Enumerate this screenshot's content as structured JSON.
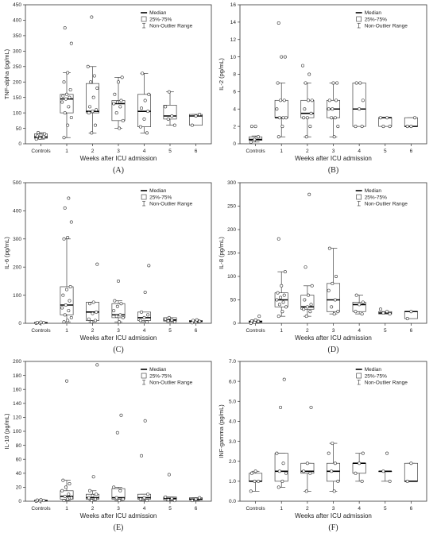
{
  "chart_data": [
    {
      "type": "box",
      "panel_label": "(A)",
      "ylabel": "TNF-alpha (pg/mL)",
      "xlabel": "Weeks after ICU admission",
      "ylim": [
        0,
        450
      ],
      "yticks": [
        0,
        50,
        100,
        150,
        200,
        250,
        300,
        350,
        400,
        450
      ],
      "categories": [
        "Controls",
        "1",
        "2",
        "3",
        "4",
        "5",
        "6"
      ],
      "legend": [
        "Median",
        "25%-75%",
        "Non-Outlier Range"
      ],
      "boxes": [
        {
          "min": 15,
          "q1": 18,
          "median": 22,
          "q3": 32,
          "max": 36
        },
        {
          "min": 20,
          "q1": 100,
          "median": 145,
          "q3": 160,
          "max": 230
        },
        {
          "min": 35,
          "q1": 100,
          "median": 105,
          "q3": 195,
          "max": 250
        },
        {
          "min": 50,
          "q1": 75,
          "median": 130,
          "q3": 140,
          "max": 215
        },
        {
          "min": 35,
          "q1": 55,
          "median": 105,
          "q3": 160,
          "max": 228
        },
        {
          "min": 60,
          "q1": 80,
          "median": 90,
          "q3": 125,
          "max": 168
        },
        {
          "min": 60,
          "q1": 60,
          "median": 90,
          "q3": 95,
          "max": 95
        }
      ],
      "points": [
        [
          15,
          18,
          22,
          25,
          28,
          32,
          36
        ],
        [
          20,
          60,
          85,
          100,
          120,
          135,
          145,
          150,
          155,
          160,
          175,
          200,
          230,
          325,
          375
        ],
        [
          35,
          60,
          100,
          105,
          110,
          120,
          150,
          180,
          200,
          220,
          250,
          410
        ],
        [
          50,
          75,
          100,
          120,
          130,
          135,
          140,
          160,
          200,
          215
        ],
        [
          35,
          55,
          80,
          105,
          115,
          140,
          160,
          228
        ],
        [
          60,
          80,
          90,
          120,
          168
        ],
        [
          60,
          90,
          95
        ]
      ]
    },
    {
      "type": "box",
      "panel_label": "(B)",
      "ylabel": "IL-2 (pg/mL)",
      "xlabel": "Weeks after ICU admission",
      "ylim": [
        0,
        16
      ],
      "yticks": [
        0,
        2,
        4,
        6,
        8,
        10,
        12,
        14,
        16
      ],
      "categories": [
        "Controls",
        "1",
        "2",
        "3",
        "4",
        "5",
        "6"
      ],
      "legend": [
        "Median",
        "25%-75%",
        "Non-Outlier Range"
      ],
      "boxes": [
        {
          "min": 0.2,
          "q1": 0.4,
          "median": 0.5,
          "q3": 0.8,
          "max": 0.9
        },
        {
          "min": 0.8,
          "q1": 3,
          "median": 3,
          "q3": 5,
          "max": 7
        },
        {
          "min": 0.8,
          "q1": 3,
          "median": 3.5,
          "q3": 5,
          "max": 7
        },
        {
          "min": 0.8,
          "q1": 3,
          "median": 4,
          "q3": 5,
          "max": 7
        },
        {
          "min": 2,
          "q1": 2,
          "median": 4,
          "q3": 7,
          "max": 7
        },
        {
          "min": 2,
          "q1": 2,
          "median": 3,
          "q3": 3,
          "max": 3
        },
        {
          "min": 2,
          "q1": 2,
          "median": 2,
          "q3": 3,
          "max": 3
        }
      ],
      "points": [
        [
          0.2,
          0.5,
          0.8,
          2,
          2
        ],
        [
          0.8,
          2,
          3,
          3,
          3,
          4,
          5,
          5,
          7,
          10,
          10,
          13.9
        ],
        [
          0.8,
          2,
          3,
          3,
          3.5,
          4,
          5,
          5,
          7,
          8,
          9
        ],
        [
          0.8,
          2,
          3,
          3,
          4,
          4,
          5,
          5,
          7,
          7
        ],
        [
          2,
          2,
          4,
          5,
          7,
          7
        ],
        [
          2,
          2,
          3,
          3
        ],
        [
          2,
          2,
          3
        ]
      ]
    },
    {
      "type": "box",
      "panel_label": "(C)",
      "ylabel": "IL-6 (pg/mL)",
      "xlabel": "Weeks after ICU admission",
      "ylim": [
        0,
        500
      ],
      "yticks": [
        0,
        100,
        200,
        300,
        400,
        500
      ],
      "categories": [
        "Controls",
        "1",
        "2",
        "3",
        "4",
        "5",
        "6"
      ],
      "legend": [
        "Median",
        "25%-75%",
        "Non-Outlier Range"
      ],
      "boxes": [
        {
          "min": 0,
          "q1": 1,
          "median": 2,
          "q3": 3,
          "max": 4
        },
        {
          "min": 5,
          "q1": 30,
          "median": 65,
          "q3": 130,
          "max": 300
        },
        {
          "min": 5,
          "q1": 10,
          "median": 40,
          "q3": 75,
          "max": 75
        },
        {
          "min": 5,
          "q1": 20,
          "median": 30,
          "q3": 70,
          "max": 80
        },
        {
          "min": 5,
          "q1": 10,
          "median": 20,
          "q3": 40,
          "max": 40
        },
        {
          "min": 5,
          "q1": 8,
          "median": 12,
          "q3": 20,
          "max": 20
        },
        {
          "min": 2,
          "q1": 5,
          "median": 7,
          "q3": 10,
          "max": 12
        }
      ],
      "points": [
        [
          0,
          1,
          2,
          3,
          4
        ],
        [
          5,
          10,
          20,
          30,
          45,
          55,
          65,
          80,
          100,
          120,
          130,
          300,
          305,
          360,
          410,
          445
        ],
        [
          5,
          10,
          15,
          35,
          40,
          70,
          75,
          210
        ],
        [
          5,
          20,
          25,
          30,
          45,
          60,
          70,
          80,
          150
        ],
        [
          5,
          10,
          20,
          30,
          40,
          110,
          205
        ],
        [
          5,
          8,
          12,
          15,
          20
        ],
        [
          2,
          5,
          7,
          10,
          12
        ]
      ]
    },
    {
      "type": "box",
      "panel_label": "(D)",
      "ylabel": "IL-8 (pg/mL)",
      "xlabel": "Weeks after ICU admission",
      "ylim": [
        0,
        300
      ],
      "yticks": [
        0,
        50,
        100,
        150,
        200,
        250,
        300
      ],
      "categories": [
        "Controls",
        "1",
        "2",
        "3",
        "4",
        "5",
        "6"
      ],
      "legend": [
        "Median",
        "25%-75%",
        "Non-Outlier Range"
      ],
      "boxes": [
        {
          "min": 0,
          "q1": 2,
          "median": 4,
          "q3": 5,
          "max": 7
        },
        {
          "min": 15,
          "q1": 35,
          "median": 50,
          "q3": 65,
          "max": 110
        },
        {
          "min": 15,
          "q1": 30,
          "median": 35,
          "q3": 60,
          "max": 80
        },
        {
          "min": 20,
          "q1": 25,
          "median": 50,
          "q3": 85,
          "max": 160
        },
        {
          "min": 20,
          "q1": 25,
          "median": 40,
          "q3": 45,
          "max": 60
        },
        {
          "min": 20,
          "q1": 20,
          "median": 22,
          "q3": 25,
          "max": 25
        },
        {
          "min": 10,
          "q1": 10,
          "median": 25,
          "q3": 25,
          "max": 25
        }
      ],
      "points": [
        [
          0,
          2,
          4,
          5,
          7,
          15
        ],
        [
          15,
          25,
          35,
          40,
          45,
          50,
          55,
          60,
          65,
          80,
          110,
          180
        ],
        [
          15,
          25,
          30,
          35,
          40,
          50,
          60,
          80,
          120,
          275
        ],
        [
          20,
          25,
          35,
          50,
          70,
          85,
          100,
          160
        ],
        [
          20,
          25,
          40,
          45,
          60
        ],
        [
          20,
          22,
          25,
          30
        ],
        [
          10,
          25
        ]
      ]
    },
    {
      "type": "box",
      "panel_label": "(E)",
      "ylabel": "IL-10 (pg/mL)",
      "xlabel": "Weeks after ICU admission",
      "ylim": [
        0,
        200
      ],
      "yticks": [
        0,
        20,
        40,
        60,
        80,
        100,
        120,
        140,
        160,
        180,
        200
      ],
      "categories": [
        "Controls",
        "1",
        "2",
        "3",
        "4",
        "5",
        "6"
      ],
      "legend": [
        "Median",
        "25%-75%",
        "Non-Outlier Range"
      ],
      "boxes": [
        {
          "min": 0,
          "q1": 0.5,
          "median": 1,
          "q3": 1.5,
          "max": 2
        },
        {
          "min": 1,
          "q1": 3,
          "median": 7,
          "q3": 15,
          "max": 30
        },
        {
          "min": 1,
          "q1": 3,
          "median": 5,
          "q3": 10,
          "max": 15
        },
        {
          "min": 1,
          "q1": 3,
          "median": 5,
          "q3": 18,
          "max": 20
        },
        {
          "min": 1,
          "q1": 3,
          "median": 5,
          "q3": 10,
          "max": 10
        },
        {
          "min": 1,
          "q1": 2,
          "median": 4,
          "q3": 6,
          "max": 6
        },
        {
          "min": 1,
          "q1": 2,
          "median": 3,
          "q3": 5,
          "max": 5
        }
      ],
      "points": [
        [
          0,
          0.5,
          1,
          1.5,
          2
        ],
        [
          1,
          3,
          5,
          7,
          10,
          15,
          20,
          25,
          30,
          172
        ],
        [
          1,
          3,
          5,
          8,
          10,
          15,
          35,
          195
        ],
        [
          1,
          3,
          5,
          15,
          20,
          98,
          123
        ],
        [
          1,
          3,
          5,
          10,
          65,
          115
        ],
        [
          1,
          2,
          4,
          6,
          38
        ],
        [
          1,
          3,
          5
        ]
      ]
    },
    {
      "type": "box",
      "panel_label": "(F)",
      "ylabel": "INF-gamma (pg/mL)",
      "xlabel": "Weeks after ICU admission",
      "ylim": [
        0,
        7
      ],
      "yticks": [
        0.0,
        1.0,
        2.0,
        3.0,
        4.0,
        5.0,
        6.0,
        7.0
      ],
      "ytick_labels": [
        "0.0",
        "1.0",
        "2.0",
        "3.0",
        "4.0",
        "5.0",
        "6.0",
        "7.0"
      ],
      "categories": [
        "Controls",
        "1",
        "2",
        "3",
        "4",
        "5",
        "6"
      ],
      "legend": [
        "Median",
        "25%-75%",
        "Non-Outlier Range"
      ],
      "boxes": [
        {
          "min": 0.5,
          "q1": 1.0,
          "median": 1.0,
          "q3": 1.4,
          "max": 1.5
        },
        {
          "min": 0.7,
          "q1": 1.0,
          "median": 1.5,
          "q3": 2.4,
          "max": 2.4
        },
        {
          "min": 0.5,
          "q1": 1.4,
          "median": 1.5,
          "q3": 1.9,
          "max": 1.9
        },
        {
          "min": 0.5,
          "q1": 1.0,
          "median": 1.5,
          "q3": 1.9,
          "max": 2.9
        },
        {
          "min": 1.0,
          "q1": 1.4,
          "median": 1.9,
          "q3": 1.9,
          "max": 2.4
        },
        {
          "min": 1.0,
          "q1": 1.5,
          "median": 1.5,
          "q3": 1.5,
          "max": 1.5
        },
        {
          "min": 1.0,
          "q1": 1.0,
          "median": 1.0,
          "q3": 1.9,
          "max": 1.9
        }
      ],
      "points": [
        [
          0.5,
          1.0,
          1.0,
          1.4,
          1.5
        ],
        [
          0.7,
          1.0,
          1.4,
          1.5,
          1.9,
          2.4,
          4.7,
          6.1
        ],
        [
          0.5,
          1.4,
          1.5,
          1.9,
          4.7
        ],
        [
          0.5,
          1.0,
          1.5,
          1.9,
          2.4,
          2.9
        ],
        [
          1.0,
          1.4,
          1.9,
          2.4
        ],
        [
          1.0,
          1.5,
          2.4
        ],
        [
          1.0,
          1.9
        ]
      ]
    }
  ]
}
